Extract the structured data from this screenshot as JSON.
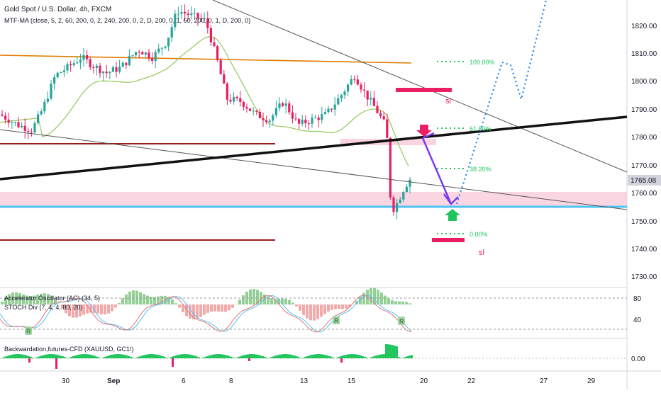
{
  "header": {
    "title": "Gold Spot / U.S. Dollar, 4h, FXCM",
    "indicator": "MTF-MA (close, 5, 2, 60, 200, 0, 2, 240, 200, 0, 2, D, 200, 0, 1, 60, 200, 0, 1, D, 200, 0)"
  },
  "price_axis": {
    "ticks": [
      "1820.00",
      "1810.00",
      "1800.00",
      "1790.00",
      "1780.00",
      "1770.00",
      "1760.00",
      "1750.00",
      "1740.00",
      "1730.00"
    ],
    "last_price": "1765.08"
  },
  "osc_axis": {
    "ticks": [
      "80",
      "40"
    ]
  },
  "back_axis": {
    "ticks": [
      "0.00"
    ]
  },
  "time_axis": {
    "ticks": [
      "30",
      "Sep",
      "6",
      "8",
      "13",
      "15",
      "20",
      "22",
      "27",
      "29"
    ]
  },
  "panels": {
    "ac_label": "Accelerator Oscillator (AC) (34, 5)",
    "stoch_label": "STOCH Div (7, 4, 4, 80, 20)",
    "back_label": "Backwardation,futures-CFD (XAUUSD, GC1!)",
    "badge": "R"
  },
  "annotations": {
    "fib": [
      "100.00%",
      "61.80%",
      "38.20%",
      "0.00%"
    ],
    "sl": "sl"
  },
  "colors": {
    "up": "#26a69a",
    "down": "#e91e63",
    "orange": "#e07b00",
    "ma_green": "#9ccc65",
    "support": "#4fc3f7",
    "zone": "#f8c8d8",
    "arrow": "#7c3aed",
    "projection": "#1e88e5"
  },
  "chart_data": {
    "type": "candlestick",
    "symbol": "XAUUSD",
    "timeframe": "4h",
    "ylim": [
      1724,
      1834
    ],
    "candles": []
  }
}
